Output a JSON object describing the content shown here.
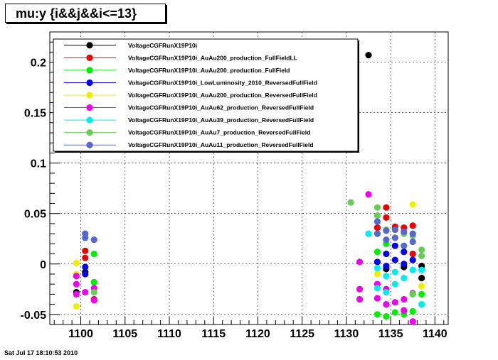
{
  "chart_data": {
    "type": "scatter",
    "title": "mu:y  {i&&j&&i<=13}",
    "xlim": [
      1096.5,
      1141.5
    ],
    "ylim": [
      -0.06,
      0.23
    ],
    "x_ticks": [
      1100,
      1105,
      1110,
      1115,
      1120,
      1125,
      1130,
      1135,
      1140
    ],
    "y_ticks": [
      -0.05,
      0,
      0.05,
      0.1,
      0.15,
      0.2
    ],
    "y_tick_labels": [
      "-0.05",
      "0",
      "0.05",
      "0.1",
      "0.15",
      "0.2"
    ],
    "grid": true,
    "legend_position": "top-left",
    "series": [
      {
        "name": "VoltageCGFRunX19P10i",
        "color": "#000000",
        "points": [
          [
            1099.5,
            -0.028
          ],
          [
            1100.5,
            -0.008
          ],
          [
            1134.5,
            -0.005
          ],
          [
            1136.5,
            -0.003
          ],
          [
            1138.5,
            -0.002
          ],
          [
            1138.5,
            -0.014
          ],
          [
            1132.5,
            0.207
          ]
        ]
      },
      {
        "name": "VoltageCGFRunX19P10i_AuAu200_production_FullFieldLL",
        "color": "#ee0000",
        "points": [
          [
            1100.5,
            0.013
          ],
          [
            1100.5,
            0.006
          ],
          [
            1101.5,
            -0.035
          ],
          [
            1133.5,
            0.036
          ],
          [
            1134.5,
            0.056
          ],
          [
            1134.5,
            0.046
          ],
          [
            1135.5,
            0.037
          ],
          [
            1136.5,
            0.036
          ],
          [
            1137.5,
            0.038
          ],
          [
            1137.5,
            0.01
          ]
        ]
      },
      {
        "name": "VoltageCGFRunX19P10i_AuAu200_production_FullField",
        "color": "#00ee00",
        "points": [
          [
            1101.5,
            0.01
          ],
          [
            1099.5,
            -0.012
          ],
          [
            1101.5,
            -0.018
          ],
          [
            1133.5,
            -0.05
          ],
          [
            1134.5,
            -0.052
          ],
          [
            1135.5,
            -0.048
          ],
          [
            1136.5,
            -0.05
          ],
          [
            1137.5,
            -0.047
          ],
          [
            1133.5,
            0.012
          ],
          [
            1134.5,
            0.02
          ],
          [
            1138.5,
            -0.03
          ]
        ]
      },
      {
        "name": "VoltageCGFRunX19P10i_LowLuminosity_2010_ReversedFullField",
        "color": "#0000ee",
        "points": [
          [
            1100.5,
            -0.003
          ],
          [
            1100.5,
            -0.01
          ],
          [
            1133.5,
            0.002
          ],
          [
            1134.5,
            0.01
          ],
          [
            1134.5,
            -0.002
          ],
          [
            1135.5,
            0.018
          ],
          [
            1135.5,
            0.004
          ],
          [
            1136.5,
            0.012
          ],
          [
            1136.5,
            0.0
          ],
          [
            1137.5,
            0.004
          ]
        ]
      },
      {
        "name": "VoltageCGFRunX19P10i_AuAu200_production_ReversedFullField",
        "color": "#eeee00",
        "points": [
          [
            1099.5,
            0.001
          ],
          [
            1099.5,
            -0.01
          ],
          [
            1099.5,
            -0.042
          ],
          [
            1137.5,
            0.059
          ],
          [
            1138.5,
            -0.022
          ],
          [
            1138.5,
            -0.04
          ],
          [
            1133.5,
            -0.01
          ]
        ]
      },
      {
        "name": "VoltageCGFRunX19P10i_AuAu62_production_ReversedFullField",
        "color": "#ee00ee",
        "points": [
          [
            1099.5,
            -0.012
          ],
          [
            1099.5,
            -0.02
          ],
          [
            1099.5,
            -0.03
          ],
          [
            1100.5,
            -0.028
          ],
          [
            1101.5,
            -0.024
          ],
          [
            1101.5,
            -0.036
          ],
          [
            1131.5,
            0.002
          ],
          [
            1131.5,
            -0.025
          ],
          [
            1131.5,
            -0.035
          ],
          [
            1132.5,
            0.069
          ],
          [
            1133.5,
            -0.02
          ],
          [
            1133.5,
            -0.034
          ],
          [
            1134.5,
            -0.04
          ],
          [
            1134.5,
            -0.025
          ],
          [
            1135.5,
            -0.038
          ],
          [
            1136.5,
            -0.035
          ],
          [
            1136.5,
            -0.046
          ],
          [
            1137.5,
            -0.029
          ],
          [
            1137.5,
            -0.057
          ]
        ]
      },
      {
        "name": "VoltageCGFRunX19P10i_AuAu39_production_ReversedFullField",
        "color": "#00eeee",
        "points": [
          [
            1132.5,
            0.03
          ],
          [
            1133.5,
            -0.004
          ],
          [
            1133.5,
            -0.024
          ],
          [
            1134.5,
            -0.012
          ],
          [
            1134.5,
            -0.028
          ],
          [
            1135.5,
            -0.008
          ],
          [
            1135.5,
            -0.02
          ],
          [
            1136.5,
            -0.014
          ],
          [
            1137.5,
            -0.006
          ],
          [
            1137.5,
            -0.03
          ],
          [
            1138.5,
            -0.04
          ],
          [
            1138.5,
            -0.006
          ]
        ]
      },
      {
        "name": "VoltageCGFRunX19P10i_AuAu7_production_ReversedFullField",
        "color": "#66cc55",
        "points": [
          [
            1130.5,
            0.061
          ],
          [
            1133.5,
            0.056
          ],
          [
            1133.5,
            0.048
          ],
          [
            1134.5,
            0.034
          ],
          [
            1136.5,
            0.03
          ],
          [
            1137.5,
            0.028
          ],
          [
            1137.5,
            -0.03
          ],
          [
            1138.5,
            0.014
          ],
          [
            1138.5,
            0.008
          ],
          [
            1101.5,
            -0.028
          ]
        ]
      },
      {
        "name": "VoltageCGFRunX19P10i_AuAu11_production_ReversedFullField",
        "color": "#5566cc",
        "points": [
          [
            1100.5,
            0.03
          ],
          [
            1100.5,
            0.026
          ],
          [
            1101.5,
            0.024
          ],
          [
            1133.5,
            0.042
          ],
          [
            1133.5,
            0.03
          ],
          [
            1134.5,
            0.033
          ],
          [
            1134.5,
            0.024
          ],
          [
            1135.5,
            0.034
          ],
          [
            1135.5,
            0.026
          ],
          [
            1136.5,
            0.032
          ],
          [
            1136.5,
            0.018
          ],
          [
            1137.5,
            0.03
          ],
          [
            1137.5,
            0.022
          ]
        ]
      }
    ]
  },
  "footer": {
    "timestamp": "Sat Jul 17 18:10:53 2010"
  }
}
